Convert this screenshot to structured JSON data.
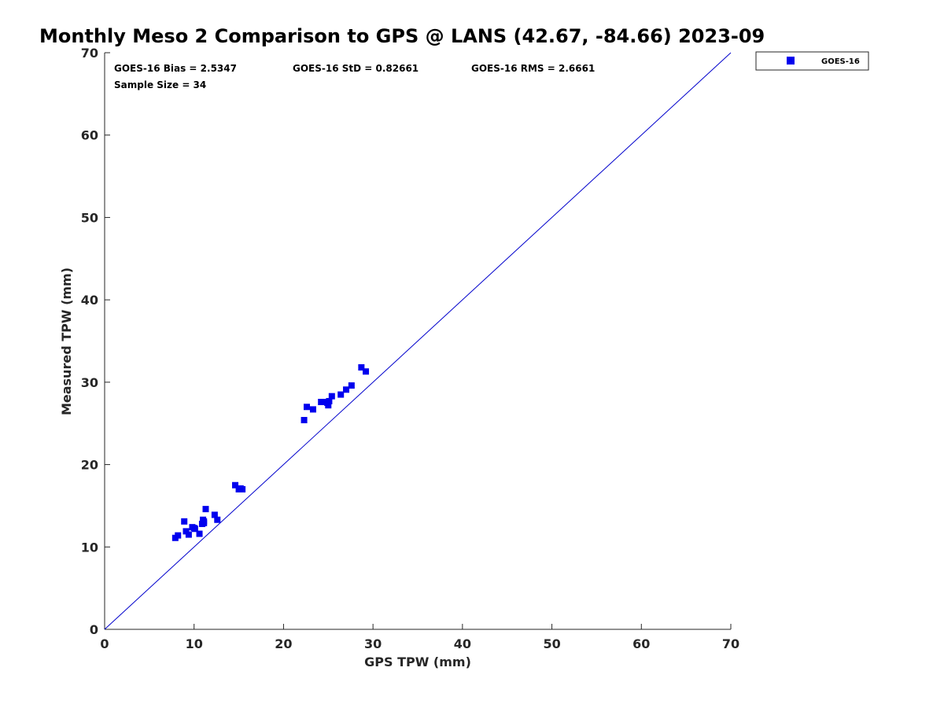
{
  "chart_data": {
    "type": "scatter",
    "title": "Monthly Meso 2 Comparison to GPS @ LANS (42.67, -84.66) 2023-09",
    "xlabel": "GPS TPW (mm)",
    "ylabel": "Measured TPW (mm)",
    "xlim": [
      0,
      70
    ],
    "ylim": [
      0,
      70
    ],
    "xticks": [
      0,
      10,
      20,
      30,
      40,
      50,
      60,
      70
    ],
    "yticks": [
      0,
      10,
      20,
      30,
      40,
      50,
      60,
      70
    ],
    "xtick_labels": [
      "0",
      "10",
      "20",
      "30",
      "40",
      "50",
      "60",
      "70"
    ],
    "ytick_labels": [
      "0",
      "10",
      "20",
      "30",
      "40",
      "50",
      "60",
      "70"
    ],
    "grid": false,
    "legend_position": "top-right, outside plot area",
    "reference_line": {
      "from": [
        0,
        0
      ],
      "to": [
        70,
        70
      ],
      "color": "#0000cc"
    },
    "annotations": {
      "bias": "GOES-16 Bias = 2.5347",
      "std": "GOES-16 StD = 0.82661",
      "rms": "GOES-16 RMS = 2.6661",
      "sample_size": "Sample Size = 34"
    },
    "series": [
      {
        "name": "GOES-16",
        "color": "#0000ee",
        "marker": "square",
        "points": [
          [
            7.9,
            11.1
          ],
          [
            8.2,
            11.4
          ],
          [
            8.9,
            13.1
          ],
          [
            9.1,
            11.9
          ],
          [
            9.4,
            11.5
          ],
          [
            9.8,
            12.4
          ],
          [
            10.1,
            12.2
          ],
          [
            10.6,
            11.6
          ],
          [
            10.9,
            12.8
          ],
          [
            11.0,
            13.3
          ],
          [
            11.1,
            12.9
          ],
          [
            11.3,
            14.6
          ],
          [
            12.3,
            13.9
          ],
          [
            12.6,
            13.3
          ],
          [
            14.6,
            17.5
          ],
          [
            15.0,
            17.0
          ],
          [
            15.4,
            17.0
          ],
          [
            22.3,
            25.4
          ],
          [
            22.6,
            27.0
          ],
          [
            23.3,
            26.7
          ],
          [
            24.2,
            27.6
          ],
          [
            24.6,
            27.6
          ],
          [
            25.0,
            27.2
          ],
          [
            25.1,
            27.7
          ],
          [
            25.4,
            28.3
          ],
          [
            26.4,
            28.5
          ],
          [
            27.0,
            29.1
          ],
          [
            27.6,
            29.6
          ],
          [
            28.7,
            31.8
          ],
          [
            29.2,
            31.3
          ],
          [
            10.0,
            12.3
          ],
          [
            11.1,
            13.1
          ],
          [
            24.9,
            27.5
          ],
          [
            15.2,
            17.1
          ]
        ]
      }
    ]
  }
}
